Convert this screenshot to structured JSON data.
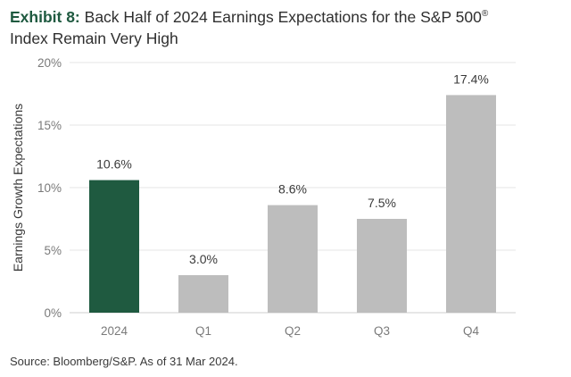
{
  "title": {
    "lead": "Exhibit 8:",
    "line1": "Back Half of 2024 Earnings Expectations for the S&P 500",
    "registered": "®",
    "line2": "Index Remain Very High"
  },
  "source": "Source: Bloomberg/S&P. As of 31 Mar 2024.",
  "colors": {
    "highlight": "#1f5a40",
    "bar": "#bdbdbd",
    "grid": "#e6e6e6"
  },
  "chart_data": {
    "type": "bar",
    "categories": [
      "2024",
      "Q1",
      "Q2",
      "Q3",
      "Q4"
    ],
    "values": [
      10.6,
      3.0,
      8.6,
      7.5,
      17.4
    ],
    "data_labels": [
      "10.6%",
      "3.0%",
      "8.6%",
      "7.5%",
      "17.4%"
    ],
    "highlight_index": 0,
    "ylabel": "Earnings Growth Expectations",
    "xlabel": "",
    "ylim": [
      0,
      20
    ],
    "yticks": [
      0,
      5,
      10,
      15,
      20
    ],
    "ytick_labels": [
      "0%",
      "5%",
      "10%",
      "15%",
      "20%"
    ],
    "grid": true
  }
}
